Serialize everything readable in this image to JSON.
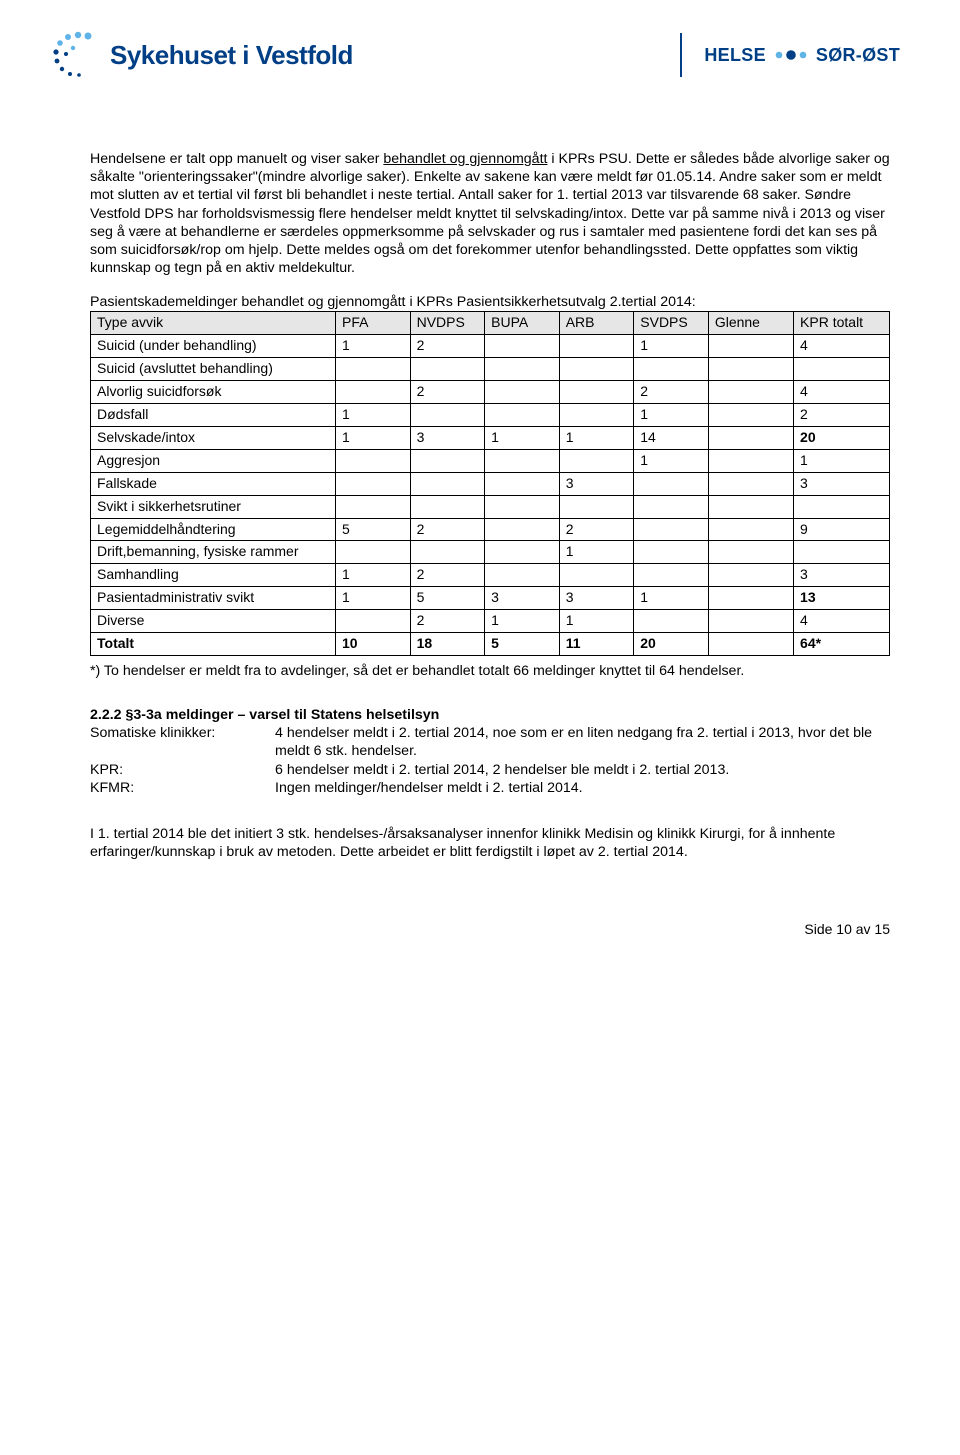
{
  "header": {
    "org_name": "Sykehuset i Vestfold",
    "right_a": "HELSE",
    "right_b": "SØR-ØST",
    "brand_color": "#003f85",
    "dot_light": "#5fb3e6",
    "dot_dark": "#003f85"
  },
  "para1_a": "Hendelsene er talt opp manuelt og viser saker ",
  "para1_u": "behandlet og gjennomgått",
  "para1_b": " i KPRs PSU. Dette er således både alvorlige saker og såkalte \"orienteringssaker\"(mindre alvorlige saker). Enkelte av sakene kan være meldt før 01.05.14. Andre saker som er meldt mot slutten av et tertial vil først bli behandlet i neste tertial. Antall saker for 1. tertial 2013 var tilsvarende 68 saker. Søndre Vestfold DPS har forholdsvismessig flere hendelser meldt knyttet til selvskading/intox. Dette var på samme nivå i 2013 og viser seg å være at behandlerne er særdeles oppmerksomme på selvskader og rus i samtaler med pasientene fordi det kan ses på som suicidforsøk/rop om hjelp. Dette meldes også om det forekommer utenfor behandlingssted. Dette oppfattes som viktig kunnskap og tegn på en aktiv meldekultur.",
  "para2": "Pasientskademeldinger behandlet og gjennomgått i KPRs  Pasientsikkerhetsutvalg 2.tertial 2014:",
  "table": {
    "columns": [
      "Type avvik",
      "PFA",
      "NVDPS",
      "BUPA",
      "ARB",
      "SVDPS",
      "Glenne",
      "KPR totalt"
    ],
    "rows": [
      {
        "label": "Suicid (under behandling)",
        "cells": [
          "1",
          "2",
          "",
          "",
          "1",
          "",
          ""
        ],
        "total": "4",
        "bold": false
      },
      {
        "label": "Suicid (avsluttet behandling)",
        "cells": [
          "",
          "",
          "",
          "",
          "",
          "",
          ""
        ],
        "total": "",
        "bold": false
      },
      {
        "label": "Alvorlig suicidforsøk",
        "cells": [
          "",
          "2",
          "",
          "",
          "2",
          "",
          ""
        ],
        "total": "4",
        "bold": false
      },
      {
        "label": "Dødsfall",
        "cells": [
          "1",
          "",
          "",
          "",
          "1",
          "",
          ""
        ],
        "total": "2",
        "bold": false
      },
      {
        "label": "Selvskade/intox",
        "cells": [
          "1",
          "3",
          "1",
          "1",
          "14",
          "",
          ""
        ],
        "total": "20",
        "bold": true
      },
      {
        "label": "Aggresjon",
        "cells": [
          "",
          "",
          "",
          "",
          "1",
          "",
          ""
        ],
        "total": "1",
        "bold": false
      },
      {
        "label": "Fallskade",
        "cells": [
          "",
          "",
          "",
          "3",
          "",
          "",
          ""
        ],
        "total": "3",
        "bold": false
      },
      {
        "label": "Svikt i sikkerhetsrutiner",
        "cells": [
          "",
          "",
          "",
          "",
          "",
          "",
          ""
        ],
        "total": "",
        "bold": false
      },
      {
        "label": "Legemiddelhåndtering",
        "cells": [
          "5",
          "2",
          "",
          "2",
          "",
          "",
          ""
        ],
        "total": "9",
        "bold": false
      },
      {
        "label": "Drift,bemanning, fysiske rammer",
        "cells": [
          "",
          "",
          "",
          "1",
          "",
          "",
          ""
        ],
        "total": "",
        "bold": false
      },
      {
        "label": "Samhandling",
        "cells": [
          "1",
          "2",
          "",
          "",
          "",
          "",
          ""
        ],
        "total": "3",
        "bold": false
      },
      {
        "label": "Pasientadministrativ svikt",
        "cells": [
          "1",
          "5",
          "3",
          "3",
          "1",
          "",
          ""
        ],
        "total": "13",
        "bold": true
      },
      {
        "label": "Diverse",
        "cells": [
          "",
          "2",
          "1",
          "1",
          "",
          "",
          ""
        ],
        "total": "4",
        "bold": false
      }
    ],
    "total_row": {
      "label": "Totalt",
      "cells": [
        "10",
        "18",
        "5",
        "11",
        "20",
        "",
        ""
      ],
      "total": "64*"
    }
  },
  "table_footnote": "*) To hendelser er meldt fra to avdelinger, så det er behandlet totalt 66 meldinger knyttet til 64 hendelser.",
  "section222_title": "2.2.2 §3-3a meldinger – varsel til Statens helsetilsyn",
  "section222": [
    {
      "k": "Somatiske klinikker:",
      "v": "4 hendelser meldt i 2. tertial 2014, noe som er en liten nedgang fra 2. tertial i 2013, hvor det ble meldt 6 stk. hendelser."
    },
    {
      "k": "KPR:",
      "v": "6 hendelser meldt i 2. tertial 2014, 2 hendelser ble meldt i 2. tertial 2013."
    },
    {
      "k": "KFMR:",
      "v": "Ingen meldinger/hendelser meldt i 2. tertial 2014."
    }
  ],
  "para3": "I 1. tertial 2014 ble det initiert 3 stk. hendelses-/årsaksanalyser innenfor klinikk Medisin og klinikk Kirurgi, for å innhente erfaringer/kunnskap i bruk av metoden. Dette arbeidet er blitt ferdigstilt i løpet av 2. tertial 2014.",
  "footer": "Side 10 av 15"
}
